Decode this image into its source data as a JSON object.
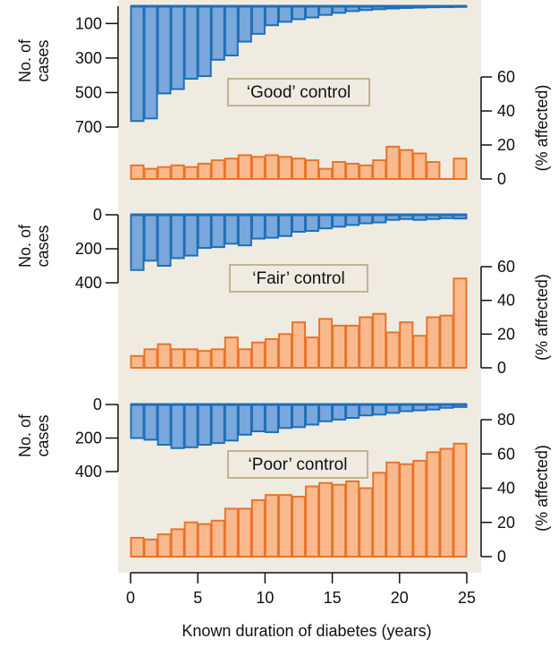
{
  "chart_data": {
    "type": "bar",
    "xlabel": "Known duration of diabetes (years)",
    "xticks": [
      0,
      5,
      10,
      15,
      20,
      25
    ],
    "xlim": [
      0,
      25
    ],
    "colors": {
      "cases_fill": "#7aa7dc",
      "cases_stroke": "#1f6fb5",
      "affected_fill": "#f9b98c",
      "affected_stroke": "#e8742a",
      "panel_bg": "#efebe1",
      "label_box_stroke": "#c1b392"
    },
    "panels": [
      {
        "label": "‘Good’ control",
        "left_ylabel": [
          "No. of",
          "cases"
        ],
        "right_ylabel": "(% affected)",
        "cases_ticks": [
          100,
          300,
          500,
          700
        ],
        "cases_range": [
          0,
          700
        ],
        "affected_ticks": [
          0,
          20,
          40,
          60
        ],
        "affected_range": [
          0,
          60
        ],
        "cases": [
          665,
          650,
          505,
          480,
          420,
          405,
          310,
          285,
          205,
          160,
          110,
          90,
          75,
          65,
          50,
          38,
          28,
          22,
          17,
          13,
          10,
          8,
          6,
          5,
          4,
          3
        ],
        "affected": [
          8,
          6,
          7,
          8,
          7,
          9,
          11,
          12,
          14,
          13,
          14,
          13,
          12,
          11,
          6,
          10,
          9,
          8,
          11,
          19,
          17,
          15,
          10,
          null,
          12
        ]
      },
      {
        "label": "‘Fair’ control",
        "left_ylabel": [
          "No. of",
          "cases"
        ],
        "right_ylabel": "(% affected)",
        "cases_ticks": [
          0,
          200,
          400
        ],
        "cases_range": [
          0,
          400
        ],
        "affected_ticks": [
          0,
          20,
          40,
          60
        ],
        "affected_range": [
          0,
          60
        ],
        "cases": [
          325,
          270,
          300,
          255,
          240,
          195,
          190,
          170,
          180,
          140,
          135,
          125,
          100,
          95,
          80,
          70,
          60,
          50,
          45,
          30,
          25,
          30,
          25,
          20,
          22,
          18
        ],
        "affected": [
          7,
          11,
          14,
          11,
          11,
          10,
          11,
          18,
          11,
          15,
          17,
          20,
          27,
          18,
          29,
          25,
          25,
          30,
          32,
          21,
          27,
          19,
          30,
          31,
          53
        ]
      },
      {
        "label": "‘Poor’ control",
        "left_ylabel": [
          "No. of",
          "cases"
        ],
        "right_ylabel": "(% affected)",
        "cases_ticks": [
          0,
          200,
          400
        ],
        "cases_range": [
          0,
          400
        ],
        "affected_ticks": [
          0,
          20,
          40,
          60,
          80
        ],
        "affected_range": [
          0,
          80
        ],
        "cases": [
          200,
          210,
          240,
          260,
          255,
          240,
          230,
          215,
          180,
          160,
          165,
          140,
          135,
          120,
          100,
          90,
          80,
          65,
          60,
          50,
          40,
          35,
          30,
          20,
          15,
          10
        ],
        "affected": [
          11,
          10,
          13,
          16,
          20,
          19,
          21,
          28,
          28,
          33,
          36,
          36,
          35,
          41,
          43,
          42,
          44,
          40,
          49,
          55,
          54,
          56,
          61,
          63,
          66
        ]
      }
    ]
  }
}
